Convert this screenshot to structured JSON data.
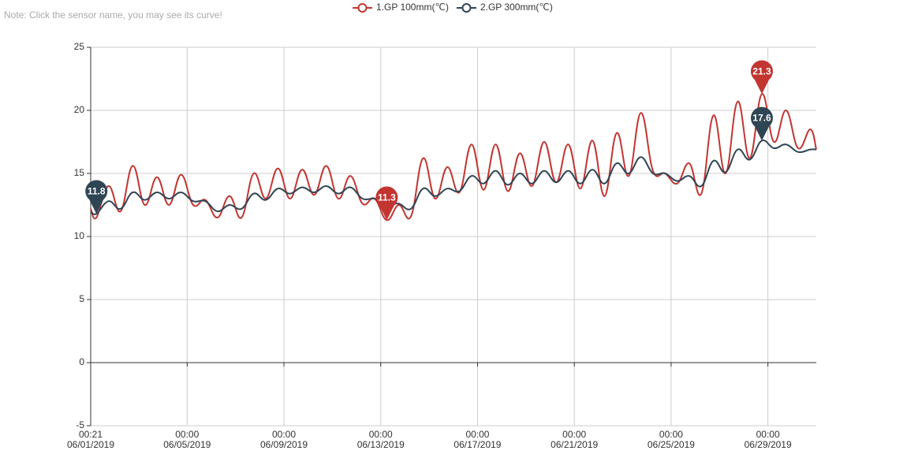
{
  "note": "Note: Click the sensor name, you may see its curve!",
  "chart_data": {
    "type": "line",
    "x": [
      "2019-06-01 00:21",
      "2019-06-01 06:00",
      "2019-06-01 18:00",
      "2019-06-02 06:00",
      "2019-06-02 18:00",
      "2019-06-03 06:00",
      "2019-06-03 18:00",
      "2019-06-04 06:00",
      "2019-06-04 18:00",
      "2019-06-05 06:00",
      "2019-06-05 18:00",
      "2019-06-06 06:00",
      "2019-06-06 18:00",
      "2019-06-07 06:00",
      "2019-06-07 18:00",
      "2019-06-08 06:00",
      "2019-06-08 18:00",
      "2019-06-09 06:00",
      "2019-06-09 18:00",
      "2019-06-10 06:00",
      "2019-06-10 18:00",
      "2019-06-11 06:00",
      "2019-06-11 18:00",
      "2019-06-12 06:00",
      "2019-06-12 18:00",
      "2019-06-13 06:00",
      "2019-06-13 18:00",
      "2019-06-14 06:00",
      "2019-06-14 18:00",
      "2019-06-15 06:00",
      "2019-06-15 18:00",
      "2019-06-16 06:00",
      "2019-06-16 18:00",
      "2019-06-17 06:00",
      "2019-06-17 18:00",
      "2019-06-18 06:00",
      "2019-06-18 18:00",
      "2019-06-19 06:00",
      "2019-06-19 18:00",
      "2019-06-20 06:00",
      "2019-06-20 18:00",
      "2019-06-21 06:00",
      "2019-06-21 18:00",
      "2019-06-22 06:00",
      "2019-06-22 18:00",
      "2019-06-23 06:00",
      "2019-06-23 18:00",
      "2019-06-24 06:00",
      "2019-06-24 18:00",
      "2019-06-25 06:00",
      "2019-06-25 18:00",
      "2019-06-26 06:00",
      "2019-06-26 18:00",
      "2019-06-27 06:00",
      "2019-06-27 18:00",
      "2019-06-28 06:00",
      "2019-06-28 18:00",
      "2019-06-29 06:00",
      "2019-06-29 18:00",
      "2019-06-30 06:00",
      "2019-06-30 18:00",
      "2019-07-01 00:00"
    ],
    "series": [
      {
        "name": "1.GP 100mm(℃)",
        "color": "#c23531",
        "values": [
          12.2,
          11.5,
          14.0,
          12.0,
          15.6,
          12.5,
          14.7,
          12.5,
          14.9,
          12.5,
          12.9,
          11.5,
          13.2,
          11.5,
          15.0,
          13.0,
          15.4,
          13.0,
          15.3,
          13.3,
          15.6,
          13.0,
          14.8,
          12.6,
          13.0,
          11.3,
          12.5,
          11.6,
          16.2,
          13.0,
          15.5,
          13.5,
          17.3,
          13.7,
          17.3,
          13.6,
          16.6,
          14.0,
          17.5,
          14.3,
          17.3,
          13.8,
          17.6,
          13.2,
          18.2,
          14.8,
          19.8,
          15.2,
          15.0,
          14.2,
          15.8,
          13.4,
          19.6,
          15.0,
          20.7,
          16.2,
          21.3,
          17.5,
          20.0,
          17.0,
          18.5,
          16.9
        ],
        "mark_points": [
          {
            "x": "2019-06-28 18:00",
            "value": 21.3
          },
          {
            "x": "2019-06-13 06:00",
            "value": 11.3
          }
        ]
      },
      {
        "name": "2.GP 300mm(℃)",
        "color": "#2f4554",
        "values": [
          12.0,
          11.8,
          12.8,
          12.2,
          13.5,
          12.9,
          13.5,
          13.0,
          13.5,
          12.8,
          12.8,
          12.0,
          12.5,
          12.2,
          13.4,
          12.9,
          13.8,
          13.4,
          13.9,
          13.5,
          14.0,
          13.4,
          13.9,
          13.0,
          13.0,
          12.6,
          12.6,
          12.2,
          13.8,
          13.2,
          13.8,
          13.6,
          14.8,
          14.2,
          15.2,
          14.1,
          15.0,
          14.2,
          15.2,
          14.3,
          15.2,
          14.2,
          15.3,
          14.2,
          15.8,
          15.0,
          16.3,
          15.0,
          15.0,
          14.4,
          14.8,
          14.0,
          16.0,
          15.1,
          16.9,
          16.1,
          17.6,
          17.0,
          17.3,
          16.7,
          16.9,
          16.9
        ],
        "mark_points": [
          {
            "x": "2019-06-28 18:00",
            "value": 17.6
          },
          {
            "x": "2019-06-01 06:00",
            "value": 11.8
          }
        ]
      }
    ],
    "xlim": [
      "2019-06-01 00:21",
      "2019-07-01 00:00"
    ],
    "xticks": [
      {
        "value": "2019-06-01 00:21",
        "label": "00:21\n06/01/2019"
      },
      {
        "value": "2019-06-05 00:00",
        "label": "00:00\n06/05/2019"
      },
      {
        "value": "2019-06-09 00:00",
        "label": "00:00\n06/09/2019"
      },
      {
        "value": "2019-06-13 00:00",
        "label": "00:00\n06/13/2019"
      },
      {
        "value": "2019-06-17 00:00",
        "label": "00:00\n06/17/2019"
      },
      {
        "value": "2019-06-21 00:00",
        "label": "00:00\n06/21/2019"
      },
      {
        "value": "2019-06-25 00:00",
        "label": "00:00\n06/25/2019"
      },
      {
        "value": "2019-06-29 00:00",
        "label": "00:00\n06/29/2019"
      }
    ],
    "ylim": [
      -5,
      25
    ],
    "yticks": [
      -5,
      0,
      5,
      10,
      15,
      20,
      25
    ],
    "grid": true,
    "legend": "top"
  }
}
